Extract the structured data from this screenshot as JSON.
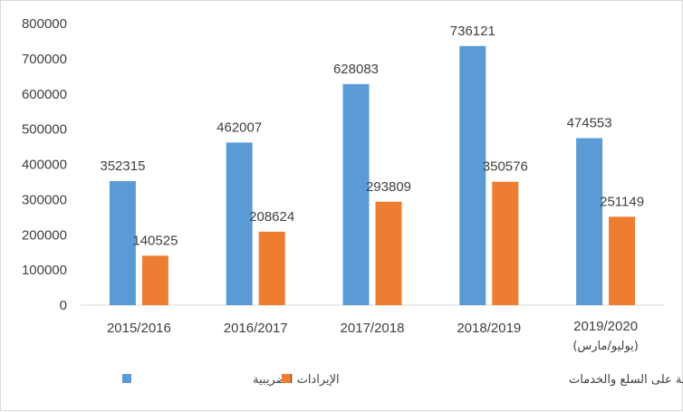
{
  "chart_data": {
    "type": "bar",
    "categories": [
      "2015/2016",
      "2016/2017",
      "2017/2018",
      "2018/2019",
      "2019/2020"
    ],
    "category_sublabels": [
      "",
      "",
      "",
      "",
      "(يوليو/مارس)"
    ],
    "series": [
      {
        "name": "الإيرادات الضريبية",
        "color": "#5b9bd5",
        "values": [
          352315,
          462007,
          628083,
          736121,
          474553
        ]
      },
      {
        "name": "الضرائب على القيمة المضافة على السلع والخدمات",
        "color": "#ed7d31",
        "values": [
          140525,
          208624,
          293809,
          350576,
          251149
        ]
      }
    ],
    "ylim": [
      0,
      800000
    ],
    "yticks": [
      0,
      100000,
      200000,
      300000,
      400000,
      500000,
      600000,
      700000,
      800000
    ],
    "grid": false,
    "legend_position": "bottom"
  }
}
